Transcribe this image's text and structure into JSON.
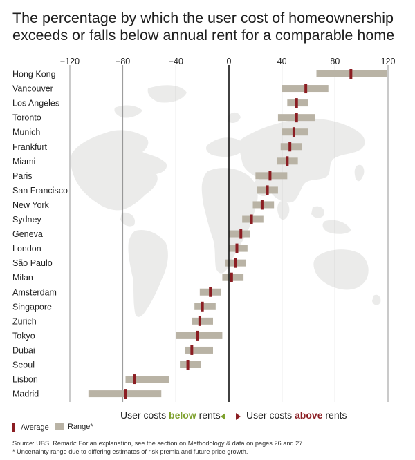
{
  "title": "The percentage by which the user cost of homeownership exceeds or falls below annual rent for a comparable home",
  "legend": {
    "average_label": "Average",
    "range_label": "Range*"
  },
  "direction": {
    "below_prefix": "User costs ",
    "below_word": "below",
    "below_suffix": " rents",
    "above_prefix": "User costs ",
    "above_word": "above",
    "above_suffix": " rents"
  },
  "footnotes": {
    "source": "Source: UBS. Remark: For an explanation, see the section on Methodology & data on pages 26 and 27.",
    "note": "* Uncertainty range due to differing estimates of risk premia and future price growth."
  },
  "colors": {
    "average": "#8b1d22",
    "range": "#b9b3a5",
    "below": "#7ea12e",
    "above": "#8b1d22",
    "map": "#ebebea",
    "gridline": "#7a7a7a"
  },
  "chart_data": {
    "type": "range-dot",
    "title": "The percentage by which the user cost of homeownership exceeds or falls below annual rent for a comparable home",
    "xlim": [
      -120,
      120
    ],
    "xticks": [
      -120,
      -80,
      -40,
      0,
      40,
      80,
      120
    ],
    "xtick_labels": [
      "−120",
      "−80",
      "−40",
      "0",
      "40",
      "80",
      "120"
    ],
    "grid": true,
    "categories": [
      "Hong Kong",
      "Vancouver",
      "Los Angeles",
      "Toronto",
      "Munich",
      "Frankfurt",
      "Miami",
      "Paris",
      "San Francisco",
      "New York",
      "Sydney",
      "Geneva",
      "London",
      "São Paulo",
      "Milan",
      "Amsterdam",
      "Singapore",
      "Zurich",
      "Tokyo",
      "Dubai",
      "Seoul",
      "Lisbon",
      "Madrid"
    ],
    "series": [
      {
        "name": "Average",
        "values": [
          92,
          58,
          51,
          51,
          49,
          46,
          44,
          31,
          29,
          25,
          17,
          9,
          6,
          5,
          2,
          -14,
          -20,
          -22,
          -24,
          -28,
          -31,
          -71,
          -78
        ]
      },
      {
        "name": "Range*",
        "low": [
          66,
          40,
          44,
          37,
          40,
          39,
          36,
          20,
          21,
          18,
          10,
          0,
          0,
          -3,
          -5,
          -22,
          -26,
          -28,
          -40,
          -33,
          -37,
          -78,
          -106
        ],
        "high": [
          119,
          75,
          60,
          65,
          60,
          55,
          52,
          44,
          37,
          34,
          26,
          16,
          14,
          13,
          11,
          -6,
          -10,
          -12,
          -5,
          -12,
          -21,
          -45,
          -51
        ]
      }
    ]
  }
}
